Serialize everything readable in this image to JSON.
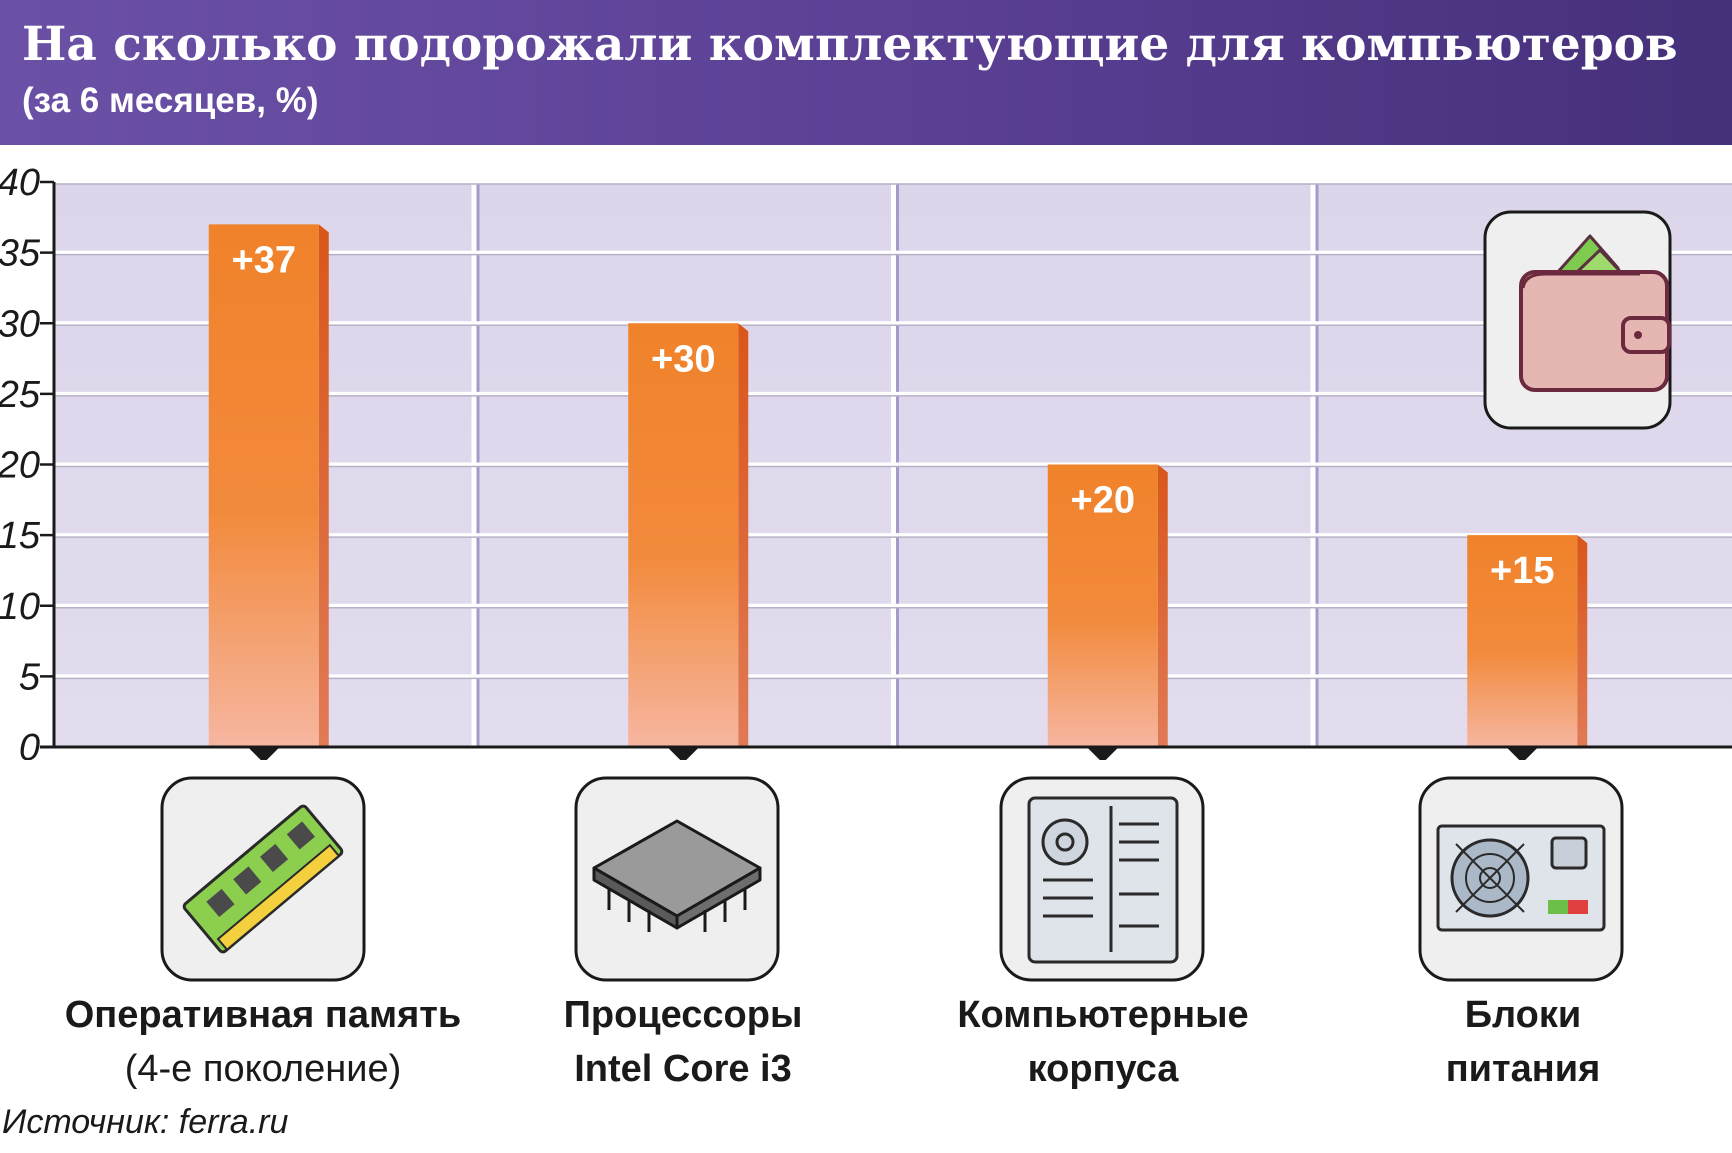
{
  "header": {
    "title": "На сколько подорожали комплектующие для компьютеров",
    "subtitle": "(за 6 месяцев, %)"
  },
  "chart_data": {
    "type": "bar",
    "title": "На сколько подорожали комплектующие для компьютеров",
    "subtitle": "(за 6 месяцев, %)",
    "categories": [
      "Оперативная память (4-е поколение)",
      "Процессоры Intel Core i3",
      "Компьютерные корпуса",
      "Блоки питания"
    ],
    "values": [
      37,
      30,
      20,
      15
    ],
    "value_labels": [
      "+37",
      "+30",
      "+20",
      "+15"
    ],
    "ylim": [
      0,
      40
    ],
    "yticks": [
      0,
      5,
      10,
      15,
      20,
      25,
      30,
      35,
      40
    ],
    "grid": true,
    "legend": "none"
  },
  "categories": [
    {
      "line1": "Оперативная память",
      "line2": "(4-е поколение)",
      "icon": "ram-module-icon"
    },
    {
      "line1": "Процессоры",
      "line2": "Intel Core i3",
      "icon": "cpu-chip-icon"
    },
    {
      "line1": "Компьютерные",
      "line2": "корпуса",
      "icon": "pc-case-icon"
    },
    {
      "line1": "Блоки",
      "line2": "питания",
      "icon": "power-supply-icon"
    }
  ],
  "decoration_icon": "wallet-icon",
  "colors": {
    "header": "#5a3f93",
    "bar": "#f0822a",
    "bar_bottom": "#f6b6a0",
    "bar_side": "#d9561a",
    "panel": "#dcd4e9"
  },
  "source": "Источник: ferra.ru"
}
